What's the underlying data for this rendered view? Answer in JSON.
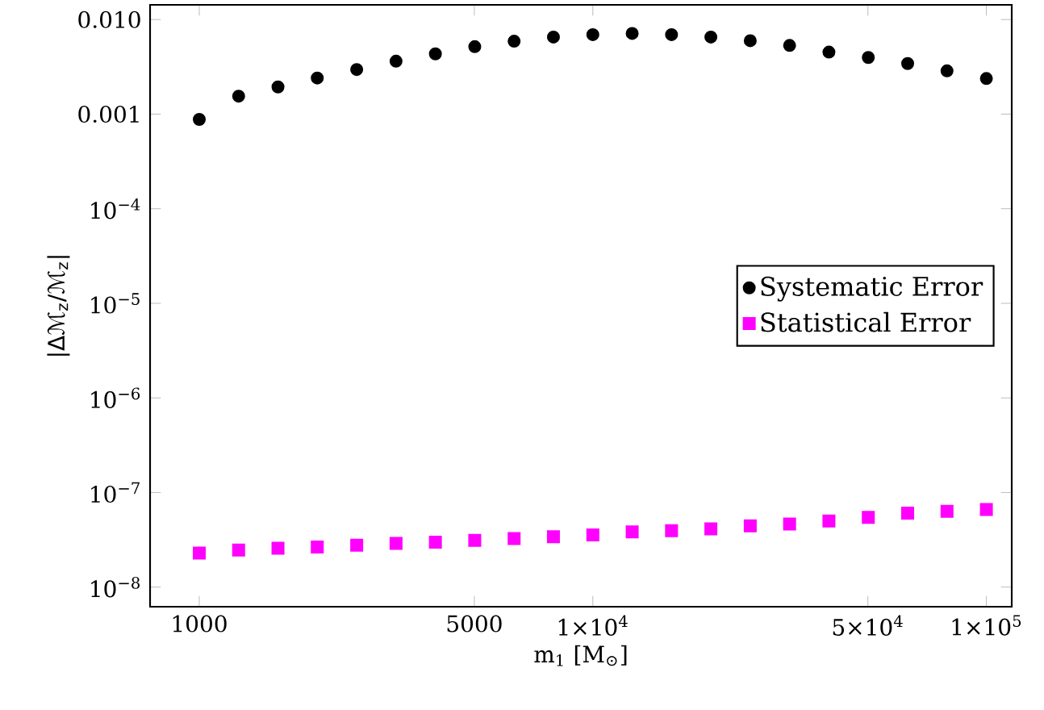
{
  "chart_data": {
    "type": "scatter",
    "xlabel": "m$_{1}$ [M$_{⊙}$]",
    "ylabel": "|Δℳ$_{z}$/ℳ$_{z}$|",
    "log": "xy",
    "legend": "right",
    "grid": false,
    "x": [
      1000,
      1259,
      1585,
      1995,
      2512,
      3162,
      3981,
      5012,
      6310,
      7943,
      10000,
      12589,
      15849,
      19953,
      25119,
      31623,
      39811,
      50119,
      63096,
      79433,
      100000
    ],
    "xlim": [
      750,
      116000
    ],
    "ylim": [
      6.2e-09,
      0.0143
    ],
    "xticks": [
      1000,
      5000,
      {
        "value": 10000,
        "label": "1×10$^{4}$"
      },
      {
        "value": 50000,
        "label": "5×10$^{4}$"
      },
      {
        "value": 100000,
        "label": "1×10$^{5}$"
      }
    ],
    "yticks": [
      {
        "value": 1e-08,
        "label": "10$^{−8}$"
      },
      {
        "value": 1e-07,
        "label": "10$^{−7}$"
      },
      {
        "value": 1e-06,
        "label": "10$^{−6}$"
      },
      {
        "value": 1e-05,
        "label": "10$^{−5}$"
      },
      {
        "value": 0.0001,
        "label": "10$^{−4}$"
      },
      {
        "value": 0.001,
        "label": "0.001"
      },
      {
        "value": 0.01,
        "label": "0.010"
      }
    ],
    "series": [
      {
        "name": "Systematic Error",
        "color": "#000000",
        "marker": "circle",
        "values": [
          0.00088,
          0.00155,
          0.00194,
          0.00241,
          0.00296,
          0.00363,
          0.00434,
          0.00517,
          0.0059,
          0.00653,
          0.00693,
          0.00714,
          0.00693,
          0.00653,
          0.00598,
          0.00532,
          0.00453,
          0.00397,
          0.00343,
          0.00287,
          0.00238
        ]
      },
      {
        "name": "Statistical Error",
        "color": "#ff00ff",
        "marker": "square",
        "values": [
          2.29e-08,
          2.46e-08,
          2.57e-08,
          2.65e-08,
          2.77e-08,
          2.9e-08,
          2.98e-08,
          3.12e-08,
          3.26e-08,
          3.4e-08,
          3.56e-08,
          3.83e-08,
          3.95e-08,
          4.12e-08,
          4.44e-08,
          4.65e-08,
          5e-08,
          5.46e-08,
          6.05e-08,
          6.33e-08,
          6.62e-08
        ]
      }
    ]
  }
}
